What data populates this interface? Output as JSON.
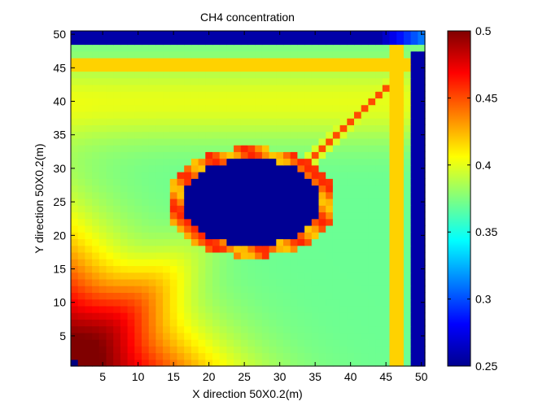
{
  "chart_data": {
    "type": "heatmap",
    "title": "CH4 concentration",
    "xlabel": "X direction 50X0.2(m)",
    "ylabel": "Y direction 50X0.2(m)",
    "grid_size": [
      50,
      50
    ],
    "xlim": [
      0.5,
      50.5
    ],
    "ylim": [
      0.5,
      50.5
    ],
    "x_ticks": [
      5,
      10,
      15,
      20,
      25,
      30,
      35,
      40,
      45,
      50
    ],
    "y_ticks": [
      5,
      10,
      15,
      20,
      25,
      30,
      35,
      40,
      45,
      50
    ],
    "colormap": "jet",
    "colorbar": {
      "min": 0.25,
      "max": 0.5,
      "ticks": [
        0.25,
        0.3,
        0.35,
        0.4,
        0.45,
        0.5
      ],
      "tick_labels": [
        "0.25",
        "0.3",
        "0.35",
        "0.4",
        "0.45",
        "0.5"
      ]
    },
    "field_features": {
      "background_level": 0.37,
      "low_core_region": {
        "x_range": [
          18,
          34
        ],
        "y_range": [
          20,
          30
        ],
        "value": 0.255
      },
      "high_band_top": {
        "y_range": [
          44,
          47
        ],
        "value": 0.46
      },
      "high_band_right": {
        "x_range": [
          45,
          48
        ],
        "value": 0.46
      },
      "low_band_top_edge": {
        "y_range": [
          49,
          50
        ],
        "value": 0.26
      },
      "low_band_right_edge": {
        "x_range": [
          49,
          50
        ],
        "value": 0.26
      },
      "high_corner_bottom_left": {
        "x": 1,
        "y": 1,
        "value": 0.5
      }
    }
  }
}
